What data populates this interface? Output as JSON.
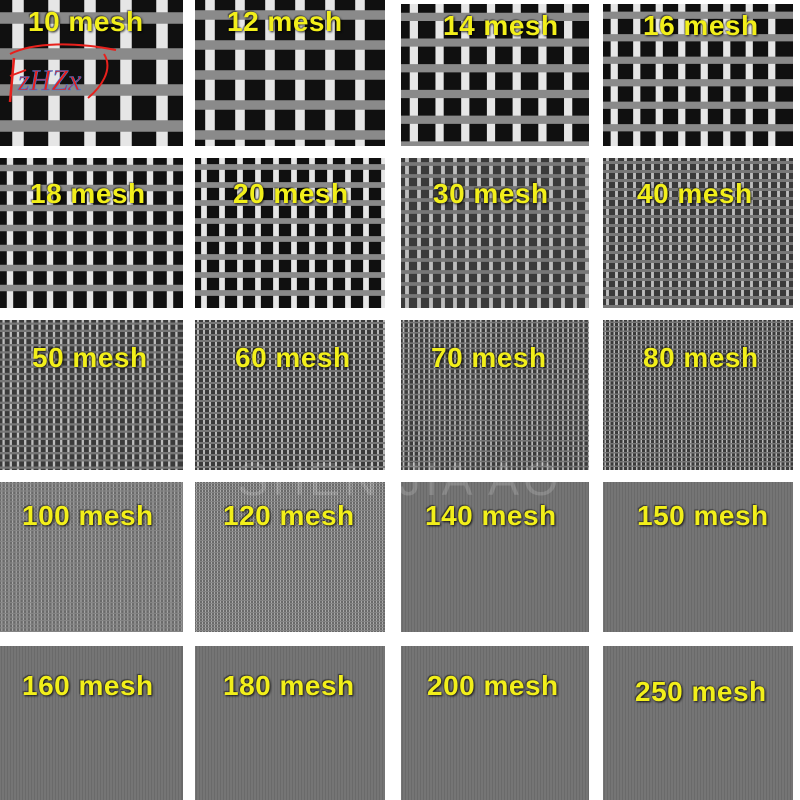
{
  "tiles": [
    {
      "label": "10 mesh"
    },
    {
      "label": "12 mesh"
    },
    {
      "label": "14 mesh"
    },
    {
      "label": "16 mesh"
    },
    {
      "label": "18 mesh"
    },
    {
      "label": "20 mesh"
    },
    {
      "label": "30 mesh"
    },
    {
      "label": "40 mesh"
    },
    {
      "label": "50 mesh"
    },
    {
      "label": "60 mesh"
    },
    {
      "label": "70 mesh"
    },
    {
      "label": "80 mesh"
    },
    {
      "label": "100 mesh"
    },
    {
      "label": "120 mesh"
    },
    {
      "label": "140 mesh"
    },
    {
      "label": "150 mesh"
    },
    {
      "label": "160 mesh"
    },
    {
      "label": "180 mesh"
    },
    {
      "label": "200 mesh"
    },
    {
      "label": "250 mesh"
    }
  ],
  "watermark": "SHEN JIA AO",
  "logo_text": "zHZx",
  "colors": {
    "label": "#f2ef1a",
    "logo": "#e8201c"
  }
}
